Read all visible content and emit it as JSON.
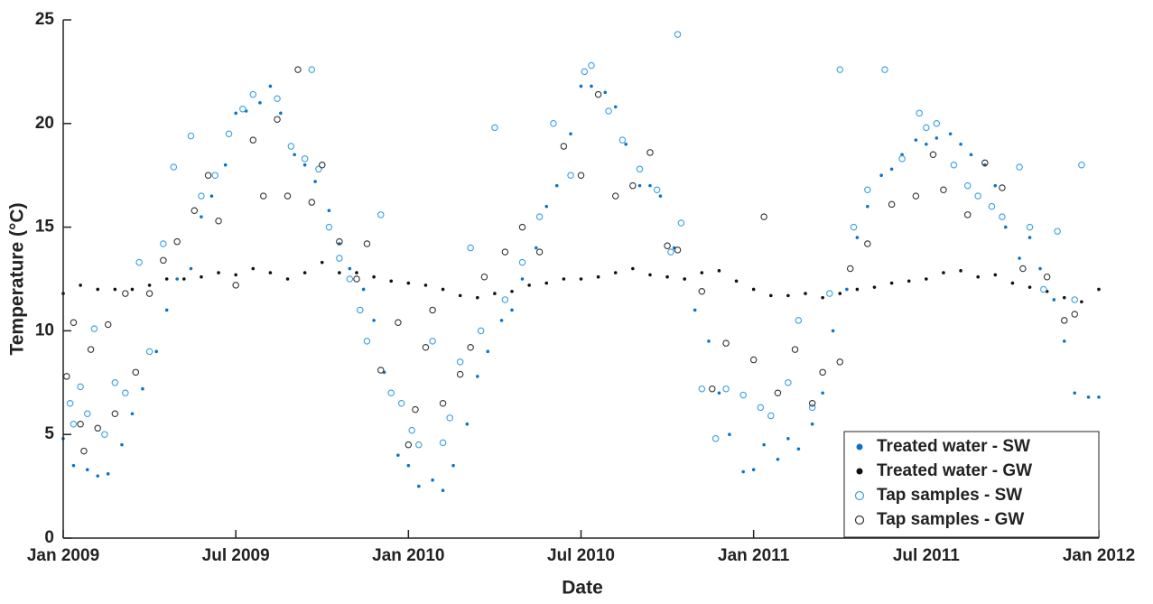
{
  "chart_data": {
    "type": "scatter",
    "xlabel": "Date",
    "ylabel": "Temperature (°C)",
    "xlim": [
      2009.0,
      2012.0
    ],
    "xticks": [
      {
        "value": 2009.0,
        "label": "Jan 2009"
      },
      {
        "value": 2009.5,
        "label": "Jul 2009"
      },
      {
        "value": 2010.0,
        "label": "Jan 2010"
      },
      {
        "value": 2010.5,
        "label": "Jul 2010"
      },
      {
        "value": 2011.0,
        "label": "Jan 2011"
      },
      {
        "value": 2011.5,
        "label": "Jul 2011"
      },
      {
        "value": 2012.0,
        "label": "Jan 2012"
      }
    ],
    "ylim": [
      0,
      25
    ],
    "yticks": [
      0,
      5,
      10,
      15,
      20,
      25
    ],
    "grid": false,
    "legend": "lower right",
    "series": [
      {
        "name": "Treated water - SW",
        "color": "#0b74c9",
        "filled": true,
        "x": [
          2009.0,
          2009.03,
          2009.07,
          2009.1,
          2009.13,
          2009.17,
          2009.2,
          2009.23,
          2009.27,
          2009.3,
          2009.33,
          2009.37,
          2009.4,
          2009.43,
          2009.47,
          2009.5,
          2009.53,
          2009.57,
          2009.6,
          2009.63,
          2009.67,
          2009.7,
          2009.73,
          2009.77,
          2009.8,
          2009.83,
          2009.87,
          2009.9,
          2009.93,
          2009.97,
          2010.0,
          2010.03,
          2010.07,
          2010.1,
          2010.13,
          2010.17,
          2010.2,
          2010.23,
          2010.27,
          2010.3,
          2010.33,
          2010.37,
          2010.4,
          2010.43,
          2010.47,
          2010.5,
          2010.53,
          2010.57,
          2010.6,
          2010.63,
          2010.67,
          2010.7,
          2010.73,
          2010.77,
          2010.8,
          2010.83,
          2010.87,
          2010.9,
          2010.93,
          2010.97,
          2011.0,
          2011.03,
          2011.07,
          2011.1,
          2011.13,
          2011.17,
          2011.2,
          2011.23,
          2011.27,
          2011.3,
          2011.33,
          2011.37,
          2011.4,
          2011.43,
          2011.47,
          2011.5,
          2011.53,
          2011.57,
          2011.6,
          2011.63,
          2011.67,
          2011.7,
          2011.73,
          2011.77,
          2011.8,
          2011.83,
          2011.87,
          2011.9,
          2011.93,
          2011.97,
          2012.0
        ],
        "values": [
          4.8,
          3.5,
          3.3,
          3.0,
          3.1,
          4.5,
          6.0,
          7.2,
          9.0,
          11.0,
          12.5,
          13.0,
          15.5,
          16.5,
          18.0,
          20.5,
          20.6,
          21.0,
          21.8,
          20.5,
          18.5,
          18.0,
          17.2,
          15.8,
          14.2,
          13.0,
          12.0,
          10.5,
          8.0,
          4.0,
          3.5,
          2.5,
          2.8,
          2.3,
          3.5,
          5.5,
          7.8,
          9.0,
          10.5,
          11.0,
          12.5,
          14.0,
          16.0,
          17.0,
          19.5,
          21.8,
          21.8,
          21.5,
          20.8,
          19.0,
          17.0,
          17.0,
          16.5,
          14.0,
          12.5,
          11.0,
          9.5,
          7.0,
          5.0,
          3.2,
          3.3,
          4.5,
          3.8,
          4.8,
          4.3,
          5.5,
          7.0,
          10.0,
          12.0,
          14.5,
          16.0,
          17.5,
          17.8,
          18.5,
          19.2,
          19.0,
          19.3,
          19.5,
          19.0,
          18.5,
          18.0,
          17.0,
          15.0,
          13.5,
          14.5,
          13.0,
          11.5,
          9.5,
          7.0,
          6.8,
          6.8
        ]
      },
      {
        "name": "Treated water - GW",
        "color": "#111111",
        "filled": true,
        "x": [
          2009.0,
          2009.05,
          2009.1,
          2009.15,
          2009.2,
          2009.25,
          2009.3,
          2009.35,
          2009.4,
          2009.45,
          2009.5,
          2009.55,
          2009.6,
          2009.65,
          2009.7,
          2009.75,
          2009.8,
          2009.85,
          2009.9,
          2009.95,
          2010.0,
          2010.05,
          2010.1,
          2010.15,
          2010.2,
          2010.25,
          2010.3,
          2010.35,
          2010.4,
          2010.45,
          2010.5,
          2010.55,
          2010.6,
          2010.65,
          2010.7,
          2010.75,
          2010.8,
          2010.85,
          2010.9,
          2010.95,
          2011.0,
          2011.05,
          2011.1,
          2011.15,
          2011.2,
          2011.25,
          2011.3,
          2011.35,
          2011.4,
          2011.45,
          2011.5,
          2011.55,
          2011.6,
          2011.65,
          2011.7,
          2011.75,
          2011.8,
          2011.85,
          2011.9,
          2011.95,
          2012.0
        ],
        "values": [
          11.8,
          12.2,
          12.0,
          12.0,
          12.0,
          12.2,
          12.5,
          12.5,
          12.6,
          12.8,
          12.7,
          13.0,
          12.8,
          12.5,
          12.8,
          13.3,
          12.8,
          12.8,
          12.6,
          12.4,
          12.3,
          12.2,
          12.0,
          11.7,
          11.6,
          11.8,
          11.9,
          12.2,
          12.3,
          12.5,
          12.5,
          12.6,
          12.8,
          13.0,
          12.7,
          12.6,
          12.5,
          12.8,
          12.9,
          12.4,
          12.0,
          11.7,
          11.7,
          11.8,
          11.6,
          11.8,
          12.0,
          12.1,
          12.3,
          12.4,
          12.5,
          12.8,
          12.9,
          12.6,
          12.7,
          12.3,
          12.1,
          11.9,
          11.6,
          11.4,
          12.0
        ]
      },
      {
        "name": "Tap samples - SW",
        "color": "#3a9fe0",
        "filled": false,
        "x": [
          2009.02,
          2009.03,
          2009.05,
          2009.07,
          2009.09,
          2009.12,
          2009.15,
          2009.18,
          2009.22,
          2009.25,
          2009.29,
          2009.32,
          2009.37,
          2009.4,
          2009.44,
          2009.48,
          2009.52,
          2009.55,
          2009.62,
          2009.66,
          2009.7,
          2009.72,
          2009.74,
          2009.77,
          2009.8,
          2009.83,
          2009.86,
          2009.88,
          2009.92,
          2009.95,
          2009.98,
          2010.01,
          2010.03,
          2010.07,
          2010.1,
          2010.12,
          2010.15,
          2010.18,
          2010.21,
          2010.25,
          2010.28,
          2010.33,
          2010.38,
          2010.42,
          2010.47,
          2010.51,
          2010.53,
          2010.58,
          2010.62,
          2010.67,
          2010.72,
          2010.76,
          2010.78,
          2010.79,
          2010.85,
          2010.89,
          2010.92,
          2010.97,
          2011.02,
          2011.05,
          2011.1,
          2011.13,
          2011.17,
          2011.22,
          2011.25,
          2011.29,
          2011.33,
          2011.38,
          2011.43,
          2011.48,
          2011.5,
          2011.53,
          2011.58,
          2011.62,
          2011.65,
          2011.69,
          2011.72,
          2011.77,
          2011.8,
          2011.84,
          2011.88,
          2011.93,
          2011.95
        ],
        "values": [
          6.5,
          5.5,
          7.3,
          6.0,
          10.1,
          5.0,
          7.5,
          7.0,
          13.3,
          9.0,
          14.2,
          17.9,
          19.4,
          16.5,
          17.5,
          19.5,
          20.7,
          21.4,
          21.2,
          18.9,
          18.3,
          22.6,
          17.8,
          15.0,
          13.5,
          12.5,
          11.0,
          9.5,
          15.6,
          7.0,
          6.5,
          5.2,
          4.5,
          9.5,
          4.6,
          5.8,
          8.5,
          14.0,
          10.0,
          19.8,
          11.5,
          13.3,
          15.5,
          20.0,
          17.5,
          22.5,
          22.8,
          20.6,
          19.2,
          17.8,
          16.8,
          13.8,
          24.3,
          15.2,
          7.2,
          4.8,
          7.2,
          6.9,
          6.3,
          5.9,
          7.5,
          10.5,
          6.3,
          11.8,
          22.6,
          15.0,
          16.8,
          22.6,
          18.3,
          20.5,
          19.8,
          20.0,
          18.0,
          17.0,
          16.5,
          16.0,
          15.5,
          17.9,
          15.0,
          12.0,
          14.8,
          11.5,
          18.0
        ]
      },
      {
        "name": "Tap samples - GW",
        "color": "#333333",
        "filled": false,
        "x": [
          2009.01,
          2009.03,
          2009.05,
          2009.06,
          2009.08,
          2009.1,
          2009.13,
          2009.15,
          2009.18,
          2009.21,
          2009.25,
          2009.29,
          2009.33,
          2009.38,
          2009.42,
          2009.45,
          2009.5,
          2009.55,
          2009.58,
          2009.62,
          2009.65,
          2009.68,
          2009.72,
          2009.75,
          2009.8,
          2009.85,
          2009.88,
          2009.92,
          2009.97,
          2010.0,
          2010.02,
          2010.05,
          2010.07,
          2010.1,
          2010.15,
          2010.18,
          2010.22,
          2010.28,
          2010.33,
          2010.38,
          2010.45,
          2010.5,
          2010.55,
          2010.6,
          2010.65,
          2010.7,
          2010.75,
          2010.78,
          2010.85,
          2010.88,
          2010.92,
          2011.0,
          2011.03,
          2011.07,
          2011.12,
          2011.17,
          2011.2,
          2011.25,
          2011.28,
          2011.33,
          2011.4,
          2011.47,
          2011.52,
          2011.55,
          2011.62,
          2011.67,
          2011.72,
          2011.78,
          2011.85,
          2011.9,
          2011.93
        ],
        "values": [
          7.8,
          10.4,
          5.5,
          4.2,
          9.1,
          5.3,
          10.3,
          6.0,
          11.8,
          8.0,
          11.8,
          13.4,
          14.3,
          15.8,
          17.5,
          15.3,
          12.2,
          19.2,
          16.5,
          20.2,
          16.5,
          22.6,
          16.2,
          18.0,
          14.3,
          12.5,
          14.2,
          8.1,
          10.4,
          4.5,
          6.2,
          9.2,
          11.0,
          6.5,
          7.9,
          9.2,
          12.6,
          13.8,
          15.0,
          13.8,
          18.9,
          17.5,
          21.4,
          16.5,
          17.0,
          18.6,
          14.1,
          13.9,
          11.9,
          7.2,
          9.4,
          8.6,
          15.5,
          7.0,
          9.1,
          6.5,
          8.0,
          8.5,
          13.0,
          14.2,
          16.1,
          16.5,
          18.5,
          16.8,
          15.6,
          18.1,
          16.9,
          13.0,
          12.6,
          10.5,
          10.8
        ]
      }
    ]
  }
}
